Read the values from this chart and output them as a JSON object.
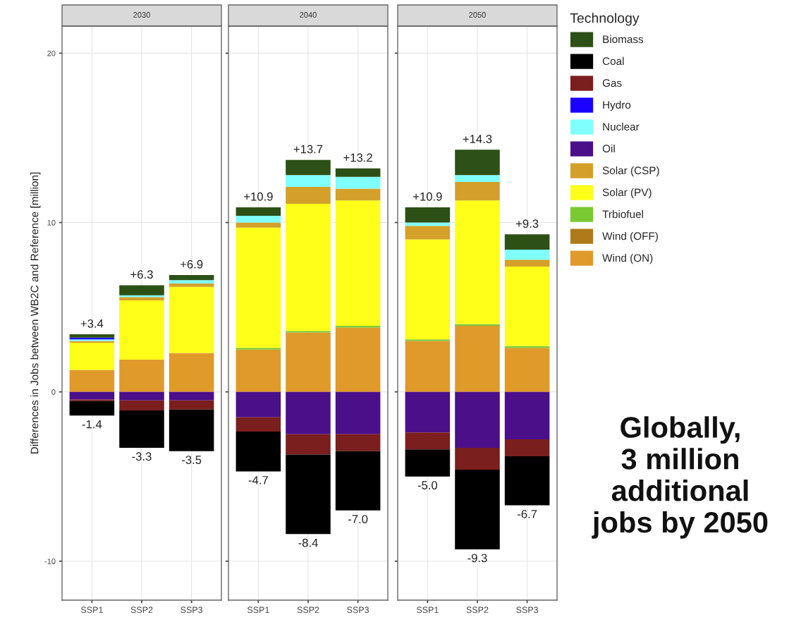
{
  "chart_data": [
    {
      "type": "bar",
      "stacked": true,
      "title": "2030",
      "ylabel": "Differences in Jobs between WB2C and Reference [million]",
      "categories": [
        "SSP1",
        "SSP2",
        "SSP3"
      ],
      "ylim": [
        -12.3,
        21.6
      ],
      "yticks": [
        -10,
        0,
        10,
        20
      ],
      "grid": true,
      "totals": [
        [
          "+3.4",
          "-1.4"
        ],
        [
          "+6.3",
          "-3.3"
        ],
        [
          "+6.9",
          "-3.5"
        ]
      ],
      "series": [
        {
          "color": "#e09a2a",
          "values": [
            1.3,
            1.9,
            2.3
          ]
        },
        {
          "color": "#b07a1a",
          "values": [
            0,
            0,
            0
          ]
        },
        {
          "color": "#7ac932",
          "values": [
            0,
            0,
            0
          ]
        },
        {
          "color": "#ffff1a",
          "values": [
            1.6,
            3.5,
            3.9
          ]
        },
        {
          "color": "#d4a02a",
          "values": [
            0.1,
            0.2,
            0.2
          ]
        },
        {
          "color": "#4b0f8a",
          "values": [
            -0.45,
            -0.5,
            -0.5
          ]
        },
        {
          "color": "#80ffff",
          "values": [
            0.1,
            0.1,
            0.2
          ]
        },
        {
          "color": "#1a00ff",
          "values": [
            0.1,
            0,
            0
          ]
        },
        {
          "color": "#7b1e1e",
          "values": [
            -0.1,
            -0.6,
            -0.55
          ]
        },
        {
          "color": "#000000",
          "values": [
            -0.85,
            -2.2,
            -2.45
          ]
        },
        {
          "color": "#2d5016",
          "values": [
            0.2,
            0.6,
            0.3
          ]
        }
      ]
    },
    {
      "type": "bar",
      "stacked": true,
      "title": "2040",
      "categories": [
        "SSP1",
        "SSP2",
        "SSP3"
      ],
      "ylim": [
        -12.3,
        21.6
      ],
      "yticks": [
        -10,
        0,
        10,
        20
      ],
      "grid": true,
      "tick_labels": "x",
      "totals": [
        [
          "+10.9",
          "-4.7"
        ],
        [
          "+13.7",
          "-8.4"
        ],
        [
          "+13.2",
          "-7.0"
        ]
      ],
      "series": [
        {
          "color": "#e09a2a",
          "values": [
            2.5,
            3.5,
            3.8
          ]
        },
        {
          "color": "#b07a1a",
          "values": [
            0,
            0,
            0
          ]
        },
        {
          "color": "#7ac932",
          "values": [
            0.1,
            0.1,
            0.1
          ]
        },
        {
          "color": "#ffff1a",
          "values": [
            7.1,
            7.5,
            7.4
          ]
        },
        {
          "color": "#d4a02a",
          "values": [
            0.3,
            1.0,
            0.7
          ]
        },
        {
          "color": "#4b0f8a",
          "values": [
            -1.5,
            -2.5,
            -2.5
          ]
        },
        {
          "color": "#80ffff",
          "values": [
            0.4,
            0.7,
            0.7
          ]
        },
        {
          "color": "#1a00ff",
          "values": [
            0,
            0,
            0
          ]
        },
        {
          "color": "#7b1e1e",
          "values": [
            -0.85,
            -1.2,
            -1.0
          ]
        },
        {
          "color": "#000000",
          "values": [
            -2.35,
            -4.7,
            -3.5
          ]
        },
        {
          "color": "#2d5016",
          "values": [
            0.5,
            0.9,
            0.5
          ]
        }
      ]
    },
    {
      "type": "bar",
      "stacked": true,
      "title": "2050",
      "categories": [
        "SSP1",
        "SSP2",
        "SSP3"
      ],
      "ylim": [
        -12.3,
        21.6
      ],
      "yticks": [
        -10,
        0,
        10,
        20
      ],
      "grid": true,
      "legend": "right",
      "legend_title": "Technology",
      "tick_labels": "x",
      "totals": [
        [
          "+10.9",
          "-5.0"
        ],
        [
          "+14.3",
          "-9.3"
        ],
        [
          "+9.3",
          "-6.7"
        ]
      ],
      "annotations": [
        "Globally,\n3 million\nadditional\njobs by 2050"
      ],
      "series": [
        {
          "name": "Wind (ON)",
          "color": "#e09a2a",
          "values": [
            3.0,
            3.9,
            2.6
          ]
        },
        {
          "name": "Wind (OFF)",
          "color": "#b07a1a",
          "values": [
            0,
            0,
            0
          ]
        },
        {
          "name": "Trbiofuel",
          "color": "#7ac932",
          "values": [
            0.1,
            0.1,
            0.1
          ]
        },
        {
          "name": "Solar (PV)",
          "color": "#ffff1a",
          "values": [
            5.9,
            7.3,
            4.7
          ]
        },
        {
          "name": "Solar (CSP)",
          "color": "#d4a02a",
          "values": [
            0.8,
            1.1,
            0.4
          ]
        },
        {
          "name": "Oil",
          "color": "#4b0f8a",
          "values": [
            -2.4,
            -3.3,
            -2.8
          ]
        },
        {
          "name": "Nuclear",
          "color": "#80ffff",
          "values": [
            0.2,
            0.4,
            0.6
          ]
        },
        {
          "name": "Hydro",
          "color": "#1a00ff",
          "values": [
            0,
            0,
            0
          ]
        },
        {
          "name": "Gas",
          "color": "#7b1e1e",
          "values": [
            -1.0,
            -1.3,
            -1.0
          ]
        },
        {
          "name": "Coal",
          "color": "#000000",
          "values": [
            -1.6,
            -4.7,
            -2.9
          ]
        },
        {
          "name": "Biomass",
          "color": "#2d5016",
          "values": [
            0.9,
            1.5,
            0.9
          ]
        }
      ]
    }
  ]
}
